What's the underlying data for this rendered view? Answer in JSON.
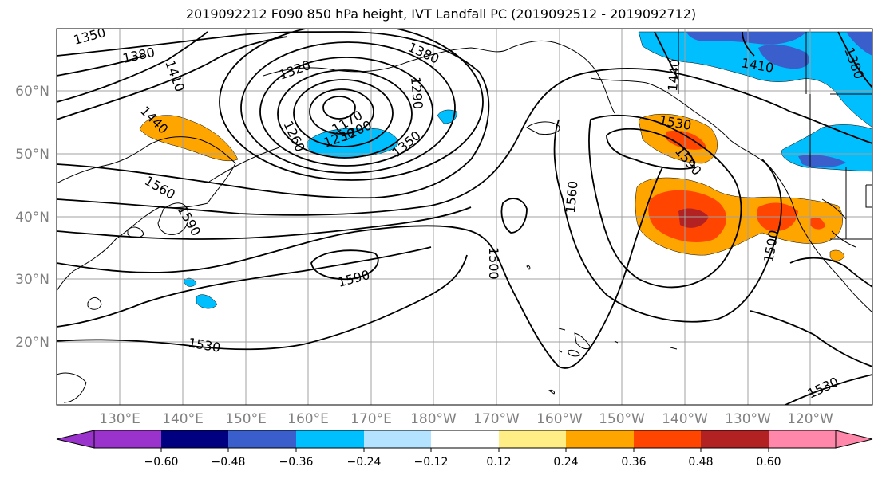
{
  "title": "2019092212 F090 850 hPa height, IVT Landfall PC (2019092512 - 2019092712)",
  "map": {
    "lat_labels": [
      "60°N",
      "50°N",
      "40°N",
      "30°N",
      "20°N"
    ],
    "lon_labels": [
      "130°E",
      "140°E",
      "150°E",
      "160°E",
      "170°E",
      "180°W",
      "170°W",
      "160°W",
      "150°W",
      "140°W",
      "130°W",
      "120°W"
    ],
    "contour_labels": {
      "c1350a": "1350",
      "c1380a": "1380",
      "c1410a": "1410",
      "c1440a": "1440",
      "c1560a": "1560",
      "c1590a": "1590",
      "c1320": "1320",
      "c1380b": "1380",
      "c1290": "1290",
      "c1260": "1260",
      "c1170": "1170",
      "c1200": "1200",
      "c1230": "1230",
      "c1350b": "1350",
      "c1590b": "1590",
      "c1530a": "1530",
      "c1500a": "1500",
      "c1560b": "1560",
      "c1440b": "1440",
      "c1410b": "1410",
      "c1380c": "1380",
      "c1530b": "1530",
      "c1590c": "1590",
      "c1500b": "1500",
      "c1530c": "1530"
    },
    "colors": {
      "neg060": "#9933cc",
      "neg048": "#000080",
      "neg036": "#3a5fcd",
      "neg024": "#00bfff",
      "neg012": "#b3e3ff",
      "pos012": "#ffed85",
      "pos024": "#ffa500",
      "pos036": "#ff4500",
      "pos048": "#b22222",
      "pos060": "#ff88aa"
    }
  },
  "colorbar": {
    "ticks": [
      "−0.60",
      "−0.48",
      "−0.36",
      "−0.24",
      "−0.12",
      "0.12",
      "0.24",
      "0.36",
      "0.48",
      "0.60"
    ]
  }
}
